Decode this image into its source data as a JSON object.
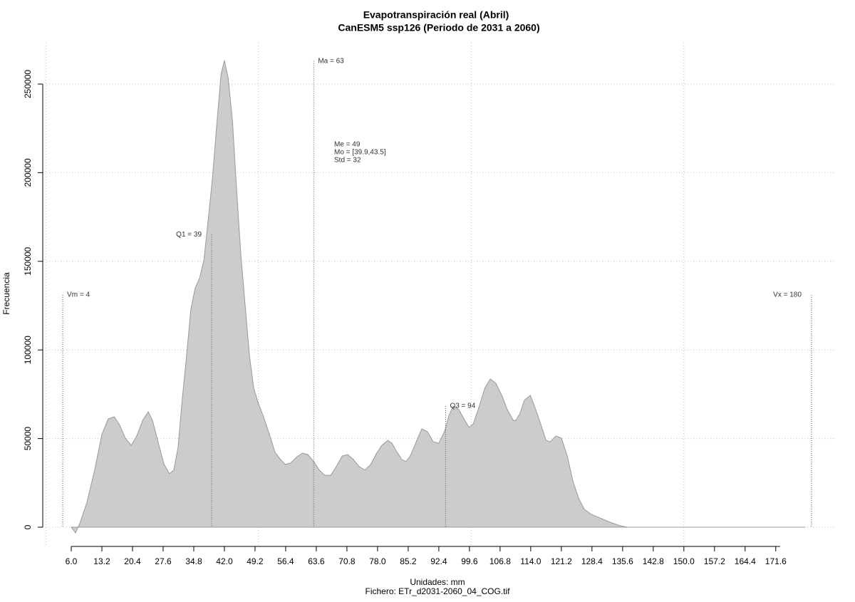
{
  "chart_data": {
    "type": "area",
    "title": "Evapotranspiración real (Abril)",
    "subtitle": "CanESM5 ssp126 (Periodo de 2031 a 2060)",
    "xlabel": "Unidades: mm",
    "caption": "Fichero: ETr_d2031-2060_04_COG.tif",
    "ylabel": "Frecuencia",
    "color": "#cccccc",
    "x": [
      6.0,
      7.0,
      8.0,
      9.7,
      11.5,
      13.2,
      14.7,
      16.1,
      17.4,
      18.7,
      20.1,
      21.4,
      22.8,
      24.1,
      25.1,
      26.4,
      27.8,
      29.1,
      30.1,
      31.1,
      32.1,
      33.1,
      34.1,
      35.1,
      36.2,
      37.2,
      38.2,
      39.2,
      40.2,
      41.2,
      42.0,
      42.9,
      43.9,
      44.9,
      45.9,
      46.9,
      47.9,
      48.9,
      49.9,
      51.2,
      52.6,
      53.9,
      55.2,
      56.3,
      57.6,
      58.9,
      60.3,
      61.6,
      63.0,
      64.3,
      65.6,
      67.0,
      68.3,
      69.7,
      71.0,
      72.3,
      73.7,
      75.0,
      76.4,
      77.7,
      79.0,
      80.4,
      81.4,
      82.4,
      83.7,
      84.7,
      85.7,
      87.1,
      88.4,
      89.7,
      91.1,
      92.4,
      93.8,
      94.8,
      95.8,
      97.1,
      98.5,
      99.5,
      100.5,
      101.8,
      103.2,
      104.5,
      105.8,
      107.2,
      108.5,
      109.9,
      110.5,
      111.5,
      112.5,
      113.9,
      115.2,
      116.6,
      117.6,
      118.6,
      119.9,
      121.2,
      122.6,
      123.9,
      125.3,
      126.6,
      128.3,
      130.3,
      132.6,
      135.0,
      136.7,
      140.0,
      178.5
    ],
    "values": [
      0,
      -3200,
      2000,
      14100,
      32200,
      52300,
      61100,
      62300,
      57500,
      50300,
      46200,
      51500,
      60300,
      65100,
      60300,
      48200,
      35400,
      30200,
      32200,
      45000,
      72400,
      96500,
      122600,
      134700,
      140700,
      150800,
      173700,
      197000,
      227100,
      255300,
      263300,
      253300,
      229100,
      189000,
      152800,
      124600,
      96500,
      78400,
      70400,
      62300,
      52300,
      42200,
      38200,
      35400,
      36200,
      39400,
      41800,
      41000,
      37000,
      32200,
      29300,
      29300,
      34200,
      40200,
      41000,
      38200,
      34200,
      32200,
      35400,
      41400,
      46200,
      49000,
      47400,
      43000,
      38200,
      37000,
      40200,
      48200,
      55500,
      53900,
      48200,
      47400,
      54300,
      63100,
      68300,
      66300,
      60300,
      56300,
      58300,
      67500,
      78400,
      83600,
      81200,
      74400,
      66300,
      60300,
      60300,
      64300,
      71600,
      74400,
      66300,
      56300,
      49000,
      48200,
      51500,
      50300,
      40200,
      26100,
      16100,
      10100,
      7200,
      5200,
      2800,
      800,
      0,
      0,
      0
    ],
    "xlim": [
      0.14,
      185.2
    ],
    "ylim": [
      -11250,
      273300
    ],
    "xticks": [
      {
        "value": 6,
        "label": "6.0"
      },
      13.2,
      20.4,
      27.6,
      34.8,
      {
        "value": 42,
        "label": "42.0"
      },
      49.2,
      56.4,
      63.6,
      70.8,
      {
        "value": 78,
        "label": "78.0"
      },
      85.2,
      92.4,
      99.6,
      106.8,
      {
        "value": 114,
        "label": "114.0"
      },
      121.2,
      128.4,
      135.6,
      142.8,
      {
        "value": 150,
        "label": "150.0"
      },
      157.2,
      164.4,
      171.6
    ],
    "xgrid": [
      0,
      50,
      100,
      150
    ],
    "yticks": [
      0,
      50000,
      100000,
      150000,
      200000,
      250000
    ],
    "grid": true,
    "annotations": [
      {
        "label": "Vm = 4",
        "x": 4,
        "y": 131000
      },
      {
        "label": "Q1 = 39",
        "x": 39,
        "y": 165000
      },
      {
        "label": "Ma = 63",
        "x": 63,
        "y": 263000
      },
      {
        "label": "Q3 = 94",
        "x": 94,
        "y": 68300
      },
      {
        "label": "Vx = 180",
        "x": 180,
        "y": 131000
      }
    ],
    "stats": [
      "Me = 49",
      "Mo = [39.9,43.5]",
      "Std = 32"
    ]
  }
}
